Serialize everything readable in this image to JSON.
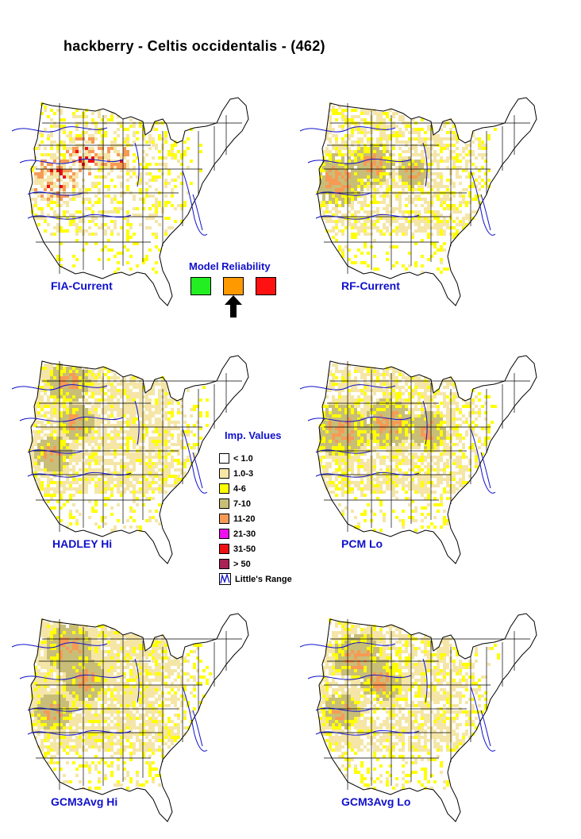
{
  "title": "hackberry - Celtis occidentalis - (462)",
  "maps": [
    {
      "id": "fia-current",
      "label": "FIA-Current"
    },
    {
      "id": "rf-current",
      "label": "RF-Current"
    },
    {
      "id": "hadley-hi",
      "label": "HADLEY Hi"
    },
    {
      "id": "pcm-lo",
      "label": "PCM Lo"
    },
    {
      "id": "gcm3avg-hi",
      "label": "GCM3Avg Hi"
    },
    {
      "id": "gcm3avg-lo",
      "label": "GCM3Avg Lo"
    }
  ],
  "model_reliability": {
    "title": "Model Reliability",
    "levels": [
      {
        "color": "#22ee22"
      },
      {
        "color": "#ff9900"
      },
      {
        "color": "#ff1111"
      }
    ],
    "selected_index": 1
  },
  "legend": {
    "title": "Imp. Values",
    "items": [
      {
        "label": "< 1.0",
        "color": "#ffffff"
      },
      {
        "label": "1.0-3",
        "color": "#f5e6a8"
      },
      {
        "label": "4-6",
        "color": "#ffff00"
      },
      {
        "label": "7-10",
        "color": "#c8be78"
      },
      {
        "label": "11-20",
        "color": "#f79a55"
      },
      {
        "label": "21-30",
        "color": "#ee11ee"
      },
      {
        "label": "31-50",
        "color": "#ee1111"
      },
      {
        "label": "> 50",
        "color": "#aa2255"
      }
    ],
    "range_label": "Little's Range",
    "range_color": "#1010cc"
  },
  "colors": {
    "state_lines": "#000000",
    "range_lines": "#1010cc",
    "label": "#1010cc"
  }
}
